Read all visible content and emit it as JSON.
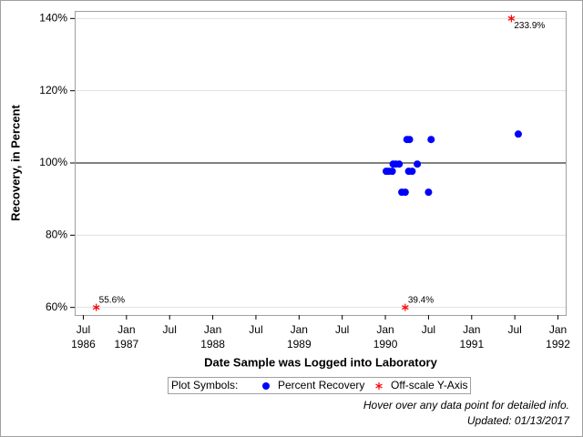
{
  "chart_data": {
    "type": "scatter",
    "xlabel": "Date Sample was Logged into Laboratory",
    "ylabel": "Recovery, in Percent",
    "xlim": [
      1986.4,
      1992.1
    ],
    "ylim": [
      57.9,
      142.1
    ],
    "xticks": [
      {
        "value": 1986.5,
        "label": "Jul"
      },
      {
        "value": 1987,
        "label": "Jan"
      },
      {
        "value": 1987.5,
        "label": "Jul"
      },
      {
        "value": 1988,
        "label": "Jan"
      },
      {
        "value": 1988.5,
        "label": "Jul"
      },
      {
        "value": 1989,
        "label": "Jan"
      },
      {
        "value": 1989.5,
        "label": "Jul"
      },
      {
        "value": 1990,
        "label": "Jan"
      },
      {
        "value": 1990.5,
        "label": "Jul"
      },
      {
        "value": 1991,
        "label": "Jan"
      },
      {
        "value": 1991.5,
        "label": "Jul"
      },
      {
        "value": 1992,
        "label": "Jan"
      }
    ],
    "xtick_years": [
      {
        "value": 1986.5,
        "label": "1986"
      },
      {
        "value": 1987,
        "label": "1987"
      },
      {
        "value": 1988,
        "label": "1988"
      },
      {
        "value": 1989,
        "label": "1989"
      },
      {
        "value": 1990,
        "label": "1990"
      },
      {
        "value": 1991,
        "label": "1991"
      },
      {
        "value": 1992,
        "label": "1992"
      }
    ],
    "yticks": [
      {
        "value": 60,
        "label": "60%"
      },
      {
        "value": 80,
        "label": "80%"
      },
      {
        "value": 100,
        "label": "100%"
      },
      {
        "value": 120,
        "label": "120%"
      },
      {
        "value": 140,
        "label": "140%"
      }
    ],
    "grid": true,
    "reference_line": 100,
    "legend_title": "Plot Symbols:",
    "series": [
      {
        "name": "Percent Recovery",
        "color": "#0000ff",
        "marker": "circle",
        "x": [
          1990.01,
          1990.04,
          1990.08,
          1990.09,
          1990.12,
          1990.16,
          1990.19,
          1990.23,
          1990.25,
          1990.28,
          1990.27,
          1990.31,
          1990.37,
          1990.5,
          1990.53,
          1991.54
        ],
        "values": [
          97.7,
          97.7,
          97.7,
          99.7,
          99.7,
          99.7,
          91.9,
          91.9,
          106.5,
          106.5,
          97.7,
          97.7,
          99.7,
          91.9,
          106.5,
          108.0
        ]
      },
      {
        "name": "Off-scale Y-Axis",
        "color": "#ff0000",
        "marker": "asterisk",
        "x": [
          1986.65,
          1990.23,
          1991.46
        ],
        "values": [
          60,
          60,
          140
        ],
        "annotations": [
          "55.6%",
          "39.4%",
          "233.9%"
        ]
      }
    ],
    "footnotes": [
      "Hover over any data point for detailed info.",
      "Updated: 01/13/2017"
    ]
  }
}
